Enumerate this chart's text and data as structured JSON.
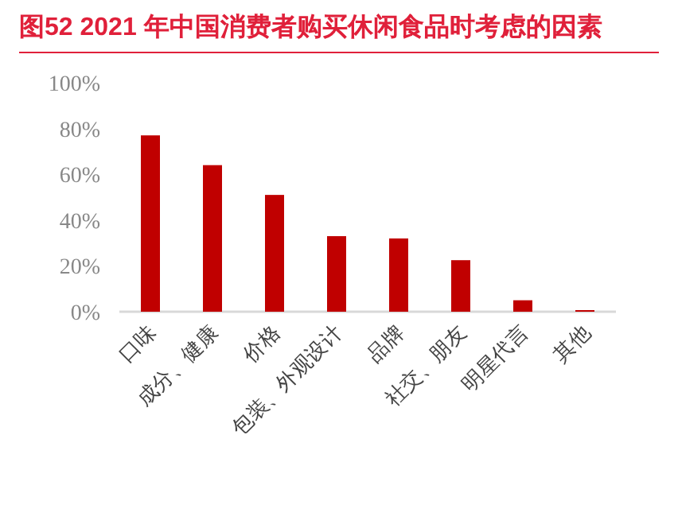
{
  "chart_data": {
    "type": "bar",
    "title": "图52  2021 年中国消费者购买休闲食品时考虑的因素",
    "categories": [
      "口味",
      "成分、健康",
      "价格",
      "包装、外观设计",
      "品牌",
      "社交、朋友",
      "明星代言",
      "其他"
    ],
    "values": [
      77,
      64,
      51,
      33,
      32,
      22.5,
      5,
      0.7
    ],
    "color": "#c00000",
    "ylim": [
      0,
      100
    ],
    "yticks": [
      {
        "value": 0,
        "label": "0%"
      },
      {
        "value": 20,
        "label": "20%"
      },
      {
        "value": 40,
        "label": "40%"
      },
      {
        "value": 60,
        "label": "60%"
      },
      {
        "value": 80,
        "label": "80%"
      },
      {
        "value": 100,
        "label": "100%"
      }
    ],
    "grid": false
  }
}
